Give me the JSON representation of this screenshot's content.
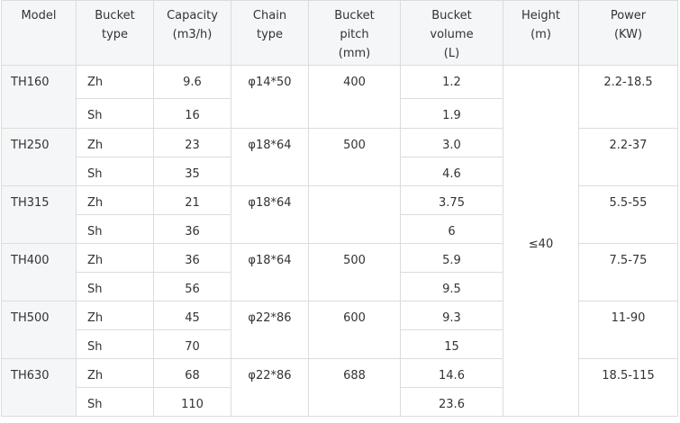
{
  "headers": [
    "Model",
    "Bucket\ntype",
    "Capacity\n(m3/h)",
    "Chain\ntype",
    "Bucket\npitch\n(mm)",
    "Bucket\nvolume\n(L)",
    "Height\n(m)",
    "Power\n(KW)"
  ],
  "height": "≤40",
  "models": [
    {
      "model": "TH160",
      "chain": "φ14*50",
      "pitch": "400",
      "power": "2.2-18.5",
      "rows": [
        {
          "type": "Zh",
          "capacity": "9.6",
          "volume": "1.2"
        },
        {
          "type": "Sh",
          "capacity": "16",
          "volume": "1.9"
        }
      ]
    },
    {
      "model": "TH250",
      "chain": "φ18*64",
      "pitch": "500",
      "power": "2.2-37",
      "rows": [
        {
          "type": "Zh",
          "capacity": "23",
          "volume": "3.0"
        },
        {
          "type": "Sh",
          "capacity": "35",
          "volume": "4.6"
        }
      ]
    },
    {
      "model": "TH315",
      "chain": "φ18*64",
      "pitch": "",
      "power": "5.5-55",
      "rows": [
        {
          "type": "Zh",
          "capacity": "21",
          "volume": "3.75"
        },
        {
          "type": "Sh",
          "capacity": "36",
          "volume": "6"
        }
      ]
    },
    {
      "model": "TH400",
      "chain": "φ18*64",
      "pitch": "500",
      "power": "7.5-75",
      "rows": [
        {
          "type": "Zh",
          "capacity": "36",
          "volume": "5.9"
        },
        {
          "type": "Sh",
          "capacity": "56",
          "volume": "9.5"
        }
      ]
    },
    {
      "model": "TH500",
      "chain": "φ22*86",
      "pitch": "600",
      "power": "11-90",
      "rows": [
        {
          "type": "Zh",
          "capacity": "45",
          "volume": "9.3"
        },
        {
          "type": "Sh",
          "capacity": "70",
          "volume": "15"
        }
      ]
    },
    {
      "model": "TH630",
      "chain": "φ22*86",
      "pitch": "688",
      "power": "18.5-115",
      "rows": [
        {
          "type": "Zh",
          "capacity": "68",
          "volume": "14.6"
        },
        {
          "type": "Sh",
          "capacity": "110",
          "volume": "23.6"
        }
      ]
    }
  ]
}
